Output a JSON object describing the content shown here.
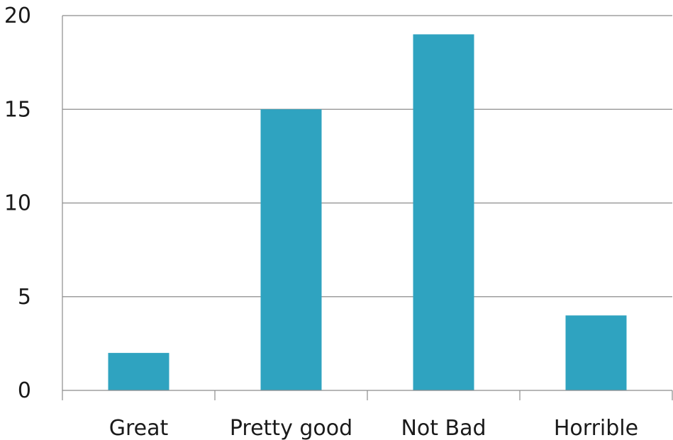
{
  "chart_data": {
    "type": "bar",
    "categories": [
      "Great",
      "Pretty good",
      "Not Bad",
      "Horrible"
    ],
    "values": [
      2,
      15,
      19,
      4
    ],
    "title": "",
    "xlabel": "",
    "ylabel": "",
    "ylim": [
      0,
      20
    ],
    "yticks": [
      0,
      5,
      10,
      15,
      20
    ],
    "ytick_labels": [
      "0",
      "5",
      "10",
      "15",
      "20"
    ],
    "grid": true,
    "legend": "none",
    "colors": {
      "bar": "#2fa3c0",
      "grid": "#8c8c8c",
      "axis": "#8c8c8c"
    }
  }
}
